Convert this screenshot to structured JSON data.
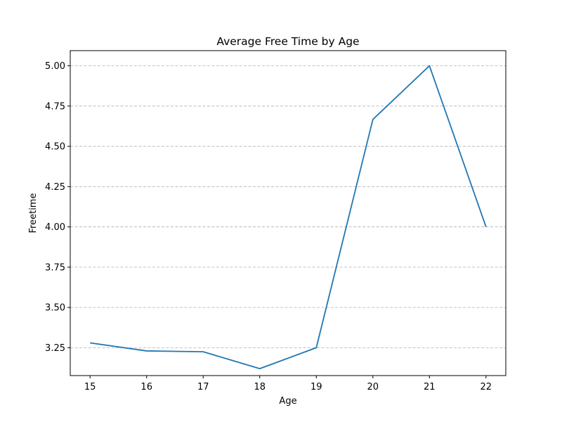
{
  "chart_data": {
    "type": "line",
    "title": "Average Free Time by Age",
    "xlabel": "Age",
    "ylabel": "Freetime",
    "x": [
      15,
      16,
      17,
      18,
      19,
      20,
      21,
      22
    ],
    "series": [
      {
        "values": [
          3.28,
          3.23,
          3.225,
          3.12,
          3.25,
          4.667,
          5.0,
          4.0
        ]
      }
    ],
    "xlim": [
      14.65,
      22.35
    ],
    "ylim": [
      3.077,
      5.094
    ],
    "x_ticks": [
      "15",
      "16",
      "17",
      "18",
      "19",
      "20",
      "21",
      "22"
    ],
    "y_ticks": [
      "3.25",
      "3.50",
      "3.75",
      "4.00",
      "4.25",
      "4.50",
      "4.75",
      "5.00"
    ],
    "grid": "horizontal-dashed",
    "line_color": "#1f77b4",
    "grid_color": "#b0b0b0"
  }
}
